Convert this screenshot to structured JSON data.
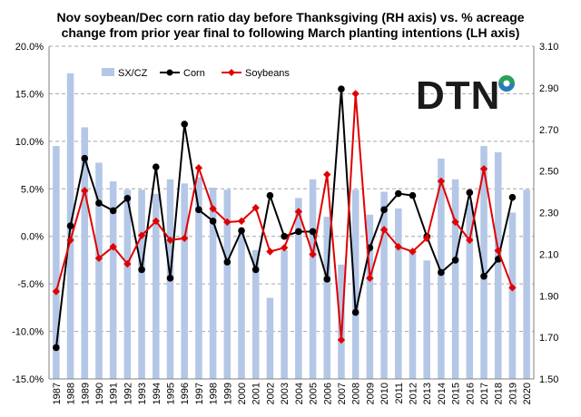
{
  "chart_data": {
    "type": "bar+line",
    "title_line1": "Nov soybean/Dec corn ratio day before Thanksgiving (RH axis)  vs. % acreage",
    "title_line2": "change from prior year final to following March planting intentions (LH axis)",
    "categories": [
      "1987",
      "1988",
      "1989",
      "1990",
      "1991",
      "1992",
      "1993",
      "1994",
      "1995",
      "1996",
      "1997",
      "1998",
      "1999",
      "2000",
      "2001",
      "2002",
      "2003",
      "2004",
      "2005",
      "2006",
      "2007",
      "2008",
      "2009",
      "2010",
      "2011",
      "2012",
      "2013",
      "2014",
      "2015",
      "2016",
      "2017",
      "2018",
      "2019",
      "2020"
    ],
    "left_axis": {
      "min": -0.15,
      "max": 0.2,
      "ticks": [
        "-15.0%",
        "-10.0%",
        "-5.0%",
        "0.0%",
        "5.0%",
        "10.0%",
        "15.0%",
        "20.0%"
      ]
    },
    "right_axis": {
      "min": 1.5,
      "max": 3.1,
      "ticks": [
        "1.50",
        "1.70",
        "1.90",
        "2.10",
        "2.30",
        "2.50",
        "2.70",
        "2.90",
        "3.10"
      ]
    },
    "series": [
      {
        "name": "SX/CZ",
        "type": "bar",
        "axis": "right",
        "color": "#b4c7e7",
        "values": [
          2.62,
          2.97,
          2.71,
          2.54,
          2.45,
          2.41,
          2.41,
          2.39,
          2.46,
          2.44,
          2.47,
          2.42,
          2.41,
          2.2,
          2.12,
          1.89,
          2.12,
          2.37,
          2.46,
          2.28,
          2.05,
          2.41,
          2.29,
          2.4,
          2.32,
          2.11,
          2.07,
          2.56,
          2.46,
          2.35,
          2.62,
          2.59,
          2.3,
          2.41
        ]
      },
      {
        "name": "Corn",
        "type": "line",
        "axis": "left",
        "color": "#000000",
        "values": [
          -0.117,
          0.011,
          0.082,
          0.035,
          0.027,
          0.04,
          -0.035,
          0.073,
          -0.044,
          0.118,
          0.028,
          0.016,
          -0.027,
          0.006,
          -0.035,
          0.043,
          0.0,
          0.005,
          0.005,
          -0.045,
          0.155,
          -0.08,
          -0.012,
          0.028,
          0.045,
          0.043,
          0.0,
          -0.038,
          -0.025,
          0.046,
          -0.042,
          -0.024,
          0.041,
          null
        ]
      },
      {
        "name": "Soybeans",
        "type": "line",
        "axis": "left",
        "color": "#e00000",
        "values": [
          -0.058,
          -0.004,
          0.048,
          -0.023,
          -0.011,
          -0.029,
          0.001,
          0.016,
          -0.004,
          -0.002,
          0.072,
          0.029,
          0.015,
          0.016,
          0.03,
          -0.016,
          -0.012,
          0.026,
          -0.019,
          0.065,
          -0.109,
          0.15,
          -0.044,
          0.007,
          -0.011,
          -0.016,
          -0.002,
          0.058,
          0.015,
          -0.004,
          0.071,
          -0.015,
          -0.054,
          null
        ]
      }
    ],
    "legend_position": "top-left",
    "gridlines": true,
    "grid_style": "dashed"
  },
  "logo": {
    "text": "DTN"
  }
}
